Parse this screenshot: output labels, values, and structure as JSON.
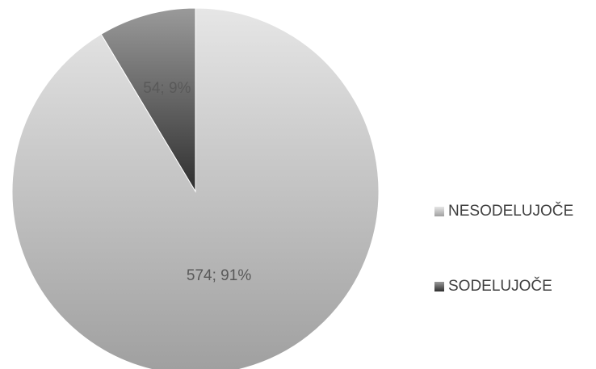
{
  "chart_data": {
    "type": "pie",
    "title": "",
    "slices": [
      {
        "name": "NESODELUJOČE",
        "value": 574,
        "percent": 91,
        "label": "574; 91%"
      },
      {
        "name": "SODELUJOČE",
        "value": 54,
        "percent": 9,
        "label": "54; 9%"
      }
    ],
    "legend_position": "right",
    "colors": {
      "NESODELUJOČE": [
        "#e6e6e6",
        "#9f9f9f"
      ],
      "SODELUJOČE": [
        "#9a9a9a",
        "#2f2f2f"
      ]
    }
  }
}
